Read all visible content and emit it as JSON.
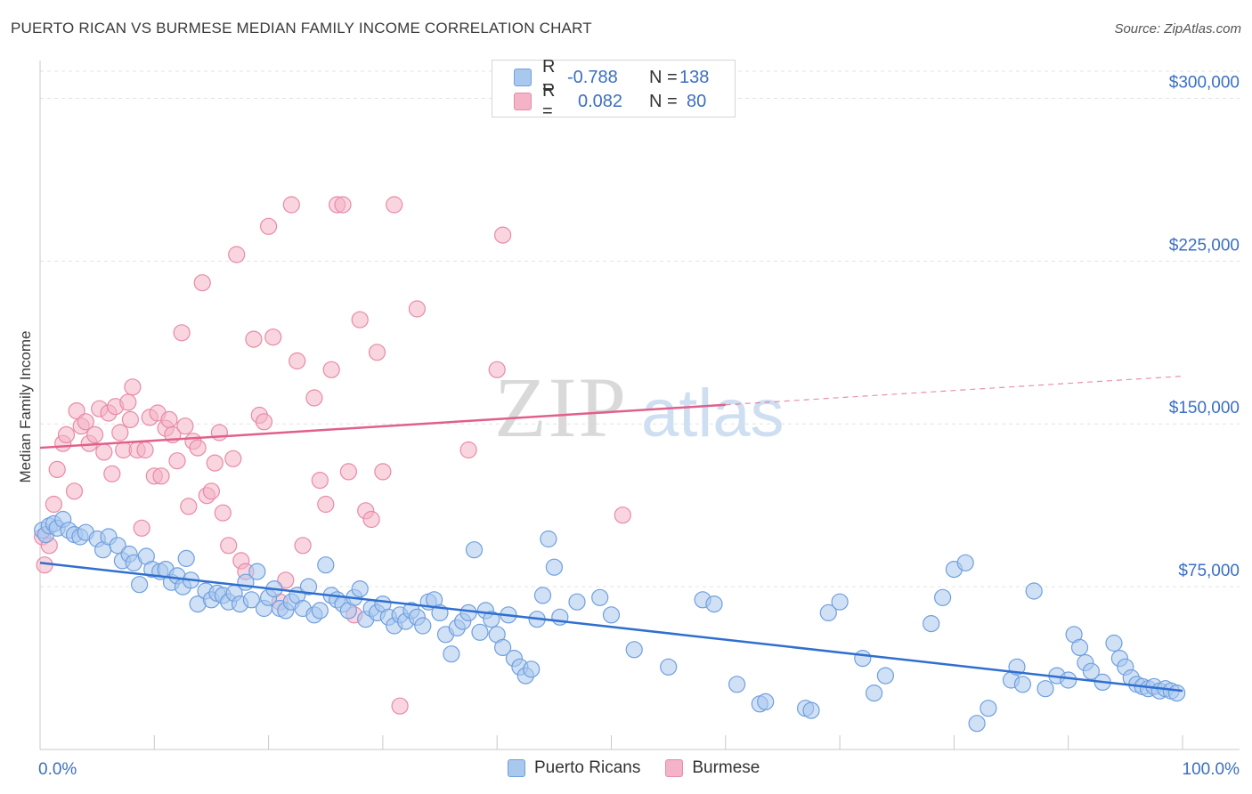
{
  "title": "PUERTO RICAN VS BURMESE MEDIAN FAMILY INCOME CORRELATION CHART",
  "source": "Source: ZipAtlas.com",
  "watermark": {
    "zip": "ZIP",
    "atlas": "atlas"
  },
  "colors": {
    "blue_fill": "#a9c8ee",
    "blue_stroke": "#6f9fde",
    "blue_line": "#2f6fd0",
    "pink_fill": "#f4b3c7",
    "pink_stroke": "#e88aa8",
    "pink_line": "#e0608a",
    "tick_text": "#3a6fc4"
  },
  "legend": {
    "rows": [
      {
        "r_label": "R =",
        "r_value": "-0.788",
        "n_label": "N =",
        "n_value": "138"
      },
      {
        "r_label": "R =",
        "r_value": "0.082",
        "n_label": "N =",
        "n_value": "80"
      }
    ]
  },
  "bottom_legend": {
    "series1": "Puerto Ricans",
    "series2": "Burmese"
  },
  "chart_data": {
    "type": "scatter",
    "ylabel": "Median Family Income",
    "xlim": [
      0,
      100
    ],
    "ylim": [
      0,
      312500
    ],
    "x_tick_labels": [
      "0.0%",
      "100.0%"
    ],
    "y_ticks": [
      {
        "value": 75000,
        "label": "$75,000"
      },
      {
        "value": 150000,
        "label": "$150,000"
      },
      {
        "value": 225000,
        "label": "$225,000"
      },
      {
        "value": 300000,
        "label": "$300,000"
      }
    ],
    "grid": true,
    "series": [
      {
        "name": "Puerto Ricans",
        "trend": {
          "x": [
            0,
            100
          ],
          "y": [
            86000,
            27000
          ],
          "solid_until": 100
        },
        "points": [
          [
            0.2,
            101000
          ],
          [
            0.5,
            99000
          ],
          [
            0.8,
            103000
          ],
          [
            1.2,
            104000
          ],
          [
            1.5,
            102000
          ],
          [
            2.0,
            106000
          ],
          [
            2.5,
            101000
          ],
          [
            3.0,
            99000
          ],
          [
            3.5,
            98000
          ],
          [
            4.0,
            100000
          ],
          [
            5.0,
            97000
          ],
          [
            5.5,
            92000
          ],
          [
            6.0,
            98000
          ],
          [
            6.8,
            94000
          ],
          [
            7.2,
            87000
          ],
          [
            7.8,
            90000
          ],
          [
            8.2,
            86000
          ],
          [
            8.7,
            76000
          ],
          [
            9.3,
            89000
          ],
          [
            9.8,
            83000
          ],
          [
            10.5,
            82000
          ],
          [
            11.0,
            83000
          ],
          [
            11.5,
            77000
          ],
          [
            12.0,
            80000
          ],
          [
            12.5,
            75000
          ],
          [
            12.8,
            88000
          ],
          [
            13.2,
            78000
          ],
          [
            13.8,
            67000
          ],
          [
            14.5,
            73000
          ],
          [
            15.0,
            69000
          ],
          [
            15.5,
            72000
          ],
          [
            16.0,
            71000
          ],
          [
            16.5,
            68000
          ],
          [
            17.0,
            72000
          ],
          [
            17.5,
            67000
          ],
          [
            18.0,
            77000
          ],
          [
            18.5,
            69000
          ],
          [
            19.0,
            82000
          ],
          [
            19.6,
            65000
          ],
          [
            20.0,
            70000
          ],
          [
            20.5,
            74000
          ],
          [
            21.0,
            65000
          ],
          [
            21.5,
            64000
          ],
          [
            22.0,
            68000
          ],
          [
            22.5,
            71000
          ],
          [
            23.0,
            65000
          ],
          [
            23.5,
            75000
          ],
          [
            24.0,
            62000
          ],
          [
            24.5,
            64000
          ],
          [
            25.0,
            85000
          ],
          [
            25.5,
            71000
          ],
          [
            26.0,
            69000
          ],
          [
            26.5,
            67000
          ],
          [
            27.0,
            64000
          ],
          [
            27.5,
            70000
          ],
          [
            28.0,
            74000
          ],
          [
            28.5,
            60000
          ],
          [
            29.0,
            65000
          ],
          [
            29.5,
            63000
          ],
          [
            30.0,
            67000
          ],
          [
            30.5,
            61000
          ],
          [
            31.0,
            57000
          ],
          [
            31.5,
            62000
          ],
          [
            32.0,
            59000
          ],
          [
            32.5,
            64000
          ],
          [
            33.0,
            61000
          ],
          [
            33.5,
            57000
          ],
          [
            34.0,
            68000
          ],
          [
            34.5,
            69000
          ],
          [
            35.0,
            63000
          ],
          [
            35.5,
            53000
          ],
          [
            36.0,
            44000
          ],
          [
            36.5,
            56000
          ],
          [
            37.0,
            59000
          ],
          [
            37.5,
            63000
          ],
          [
            38.0,
            92000
          ],
          [
            38.5,
            54000
          ],
          [
            39.0,
            64000
          ],
          [
            39.5,
            60000
          ],
          [
            40.0,
            53000
          ],
          [
            40.5,
            47000
          ],
          [
            41.0,
            62000
          ],
          [
            41.5,
            42000
          ],
          [
            42.0,
            38000
          ],
          [
            42.5,
            34000
          ],
          [
            43.0,
            37000
          ],
          [
            43.5,
            60000
          ],
          [
            44.0,
            71000
          ],
          [
            44.5,
            97000
          ],
          [
            45.0,
            84000
          ],
          [
            45.5,
            61000
          ],
          [
            47.0,
            68000
          ],
          [
            49.0,
            70000
          ],
          [
            50.0,
            62000
          ],
          [
            52.0,
            46000
          ],
          [
            55.0,
            38000
          ],
          [
            58.0,
            69000
          ],
          [
            59.0,
            67000
          ],
          [
            61.0,
            30000
          ],
          [
            63.0,
            21000
          ],
          [
            63.5,
            22000
          ],
          [
            67.0,
            19000
          ],
          [
            67.5,
            18000
          ],
          [
            69.0,
            63000
          ],
          [
            70.0,
            68000
          ],
          [
            72.0,
            42000
          ],
          [
            73.0,
            26000
          ],
          [
            74.0,
            34000
          ],
          [
            78.0,
            58000
          ],
          [
            79.0,
            70000
          ],
          [
            80.0,
            83000
          ],
          [
            81.0,
            86000
          ],
          [
            82.0,
            12000
          ],
          [
            83.0,
            19000
          ],
          [
            85.0,
            32000
          ],
          [
            85.5,
            38000
          ],
          [
            86.0,
            30000
          ],
          [
            87.0,
            73000
          ],
          [
            88.0,
            28000
          ],
          [
            89.0,
            34000
          ],
          [
            90.0,
            32000
          ],
          [
            90.5,
            53000
          ],
          [
            91.0,
            47000
          ],
          [
            91.5,
            40000
          ],
          [
            92.0,
            36000
          ],
          [
            93.0,
            31000
          ],
          [
            94.0,
            49000
          ],
          [
            94.5,
            42000
          ],
          [
            95.0,
            38000
          ],
          [
            95.5,
            33000
          ],
          [
            96.0,
            30000
          ],
          [
            96.5,
            29000
          ],
          [
            97.0,
            28000
          ],
          [
            97.5,
            29000
          ],
          [
            98.0,
            27000
          ],
          [
            98.5,
            28000
          ],
          [
            99.0,
            27000
          ],
          [
            99.5,
            26000
          ]
        ]
      },
      {
        "name": "Burmese",
        "trend": {
          "x": [
            0,
            100
          ],
          "y": [
            139000,
            172000
          ],
          "solid_until": 60
        },
        "points": [
          [
            0.2,
            98000
          ],
          [
            0.4,
            85000
          ],
          [
            0.8,
            94000
          ],
          [
            1.2,
            113000
          ],
          [
            1.5,
            129000
          ],
          [
            2.0,
            141000
          ],
          [
            2.3,
            145000
          ],
          [
            3.0,
            119000
          ],
          [
            3.2,
            156000
          ],
          [
            3.6,
            149000
          ],
          [
            4.0,
            151000
          ],
          [
            4.3,
            141000
          ],
          [
            4.8,
            145000
          ],
          [
            5.2,
            157000
          ],
          [
            5.6,
            137000
          ],
          [
            6.0,
            155000
          ],
          [
            6.3,
            127000
          ],
          [
            6.6,
            158000
          ],
          [
            7.0,
            146000
          ],
          [
            7.3,
            138000
          ],
          [
            7.7,
            160000
          ],
          [
            7.9,
            152000
          ],
          [
            8.1,
            167000
          ],
          [
            8.5,
            138000
          ],
          [
            8.9,
            102000
          ],
          [
            9.2,
            138000
          ],
          [
            9.6,
            153000
          ],
          [
            10.0,
            126000
          ],
          [
            10.3,
            155000
          ],
          [
            10.6,
            126000
          ],
          [
            11.0,
            148000
          ],
          [
            11.3,
            152000
          ],
          [
            11.6,
            145000
          ],
          [
            12.0,
            133000
          ],
          [
            12.4,
            192000
          ],
          [
            12.7,
            149000
          ],
          [
            13.0,
            112000
          ],
          [
            13.4,
            142000
          ],
          [
            13.8,
            139000
          ],
          [
            14.2,
            215000
          ],
          [
            14.6,
            117000
          ],
          [
            15.0,
            119000
          ],
          [
            15.3,
            132000
          ],
          [
            15.7,
            146000
          ],
          [
            16.0,
            109000
          ],
          [
            16.5,
            94000
          ],
          [
            16.9,
            134000
          ],
          [
            17.2,
            228000
          ],
          [
            17.6,
            87000
          ],
          [
            18.0,
            82000
          ],
          [
            18.7,
            189000
          ],
          [
            19.2,
            154000
          ],
          [
            19.6,
            151000
          ],
          [
            20.0,
            241000
          ],
          [
            20.4,
            190000
          ],
          [
            21.0,
            68000
          ],
          [
            21.5,
            78000
          ],
          [
            22.0,
            251000
          ],
          [
            22.5,
            179000
          ],
          [
            23.0,
            94000
          ],
          [
            24.0,
            162000
          ],
          [
            24.5,
            124000
          ],
          [
            25.0,
            113000
          ],
          [
            25.5,
            175000
          ],
          [
            26.0,
            251000
          ],
          [
            26.5,
            251000
          ],
          [
            27.0,
            128000
          ],
          [
            27.5,
            62000
          ],
          [
            28.0,
            198000
          ],
          [
            28.5,
            110000
          ],
          [
            29.0,
            106000
          ],
          [
            29.5,
            183000
          ],
          [
            30.0,
            128000
          ],
          [
            31.0,
            251000
          ],
          [
            31.5,
            20000
          ],
          [
            33.0,
            203000
          ],
          [
            37.5,
            138000
          ],
          [
            40.0,
            175000
          ],
          [
            40.5,
            237000
          ],
          [
            51.0,
            108000
          ]
        ]
      }
    ]
  }
}
